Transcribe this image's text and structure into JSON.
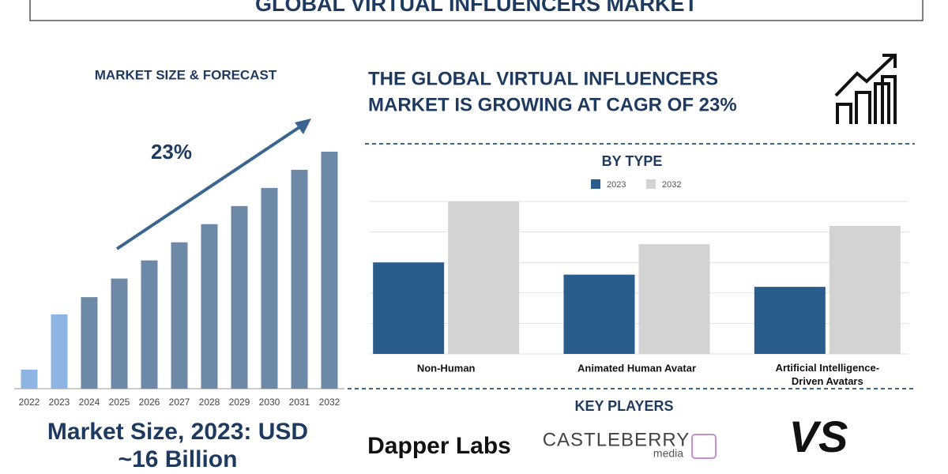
{
  "header": {
    "title": "GLOBAL VIRTUAL INFLUENCERS MARKET"
  },
  "headline": [
    "THE GLOBAL VIRTUAL INFLUENCERS",
    "MARKET IS GROWING AT CAGR OF 23%"
  ],
  "market_size": [
    "Market Size, 2023: USD",
    "~16 Billion"
  ],
  "key_players": {
    "title": "KEY PLAYERS",
    "logos": [
      "Dapper Labs",
      "CASTLEBERRY",
      "media",
      "VS"
    ]
  },
  "chart_data": [
    {
      "type": "bar",
      "title": "MARKET SIZE & FORECAST",
      "annotation": "23%",
      "categories": [
        "2022",
        "2023",
        "2024",
        "2025",
        "2026",
        "2027",
        "2028",
        "2029",
        "2030",
        "2031",
        "2032"
      ],
      "values": [
        4.1,
        16,
        19.7,
        23.7,
        27.6,
        31.5,
        35.4,
        39.3,
        43.2,
        47.1,
        51
      ],
      "colors": [
        "#8db4e2",
        "#8db4e2",
        "#6e88a8",
        "#6e88a8",
        "#6e88a8",
        "#6e88a8",
        "#6e88a8",
        "#6e88a8",
        "#6e88a8",
        "#6e88a8",
        "#6e88a8"
      ]
    },
    {
      "type": "grouped-bar",
      "title": "BY TYPE",
      "categories": [
        "Non-Human",
        "Animated Human Avatar",
        "Artificial Intelligence-Driven Avatars"
      ],
      "series": [
        {
          "name": "2023",
          "color": "#2b5d8c",
          "values": [
            3.0,
            2.6,
            2.2
          ]
        },
        {
          "name": "2032",
          "color": "#d3d3d3",
          "values": [
            5.0,
            3.6,
            4.2
          ]
        }
      ],
      "ylim": [
        0,
        5
      ],
      "yticks": [
        0,
        1,
        2,
        3,
        4,
        5
      ],
      "grid": true
    }
  ]
}
